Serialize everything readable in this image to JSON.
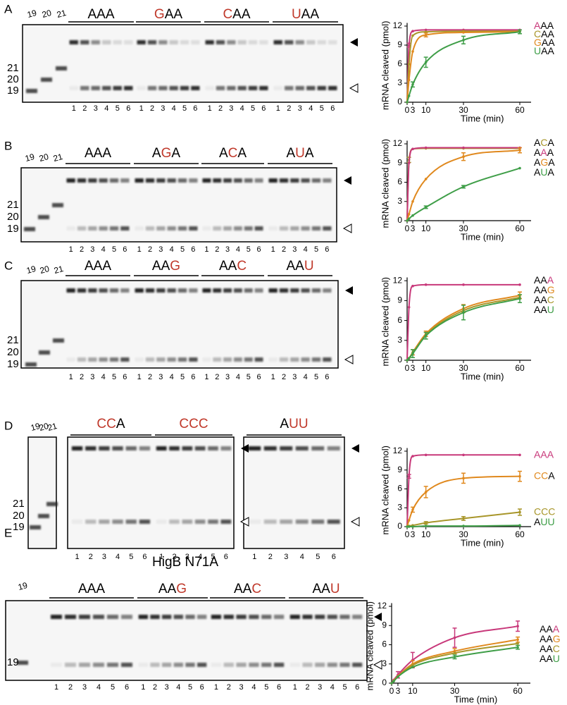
{
  "panel_labels": [
    "A",
    "B",
    "C",
    "D",
    "E"
  ],
  "gels": [
    {
      "ladder_top": [
        19,
        20,
        21
      ],
      "ladder_side": [
        21,
        20,
        19
      ],
      "lanes": [
        1,
        2,
        3,
        4,
        5,
        6
      ],
      "groups": [
        {
          "text": "AAA",
          "letter_colors": [
            "#000000",
            "#000000",
            "#000000"
          ]
        },
        {
          "text": "GAA",
          "letter_colors": [
            "#c0392b",
            "#000000",
            "#000000"
          ]
        },
        {
          "text": "CAA",
          "letter_colors": [
            "#c0392b",
            "#000000",
            "#000000"
          ]
        },
        {
          "text": "UAA",
          "letter_colors": [
            "#c0392b",
            "#000000",
            "#000000"
          ]
        }
      ]
    },
    {
      "ladder_top": [
        19,
        20,
        21
      ],
      "ladder_side": [
        21,
        20,
        19
      ],
      "lanes": [
        1,
        2,
        3,
        4,
        5,
        6
      ],
      "groups": [
        {
          "text": "AAA",
          "letter_colors": [
            "#000000",
            "#000000",
            "#000000"
          ]
        },
        {
          "text": "AGA",
          "letter_colors": [
            "#000000",
            "#c0392b",
            "#000000"
          ]
        },
        {
          "text": "ACA",
          "letter_colors": [
            "#000000",
            "#c0392b",
            "#000000"
          ]
        },
        {
          "text": "AUA",
          "letter_colors": [
            "#000000",
            "#c0392b",
            "#000000"
          ]
        }
      ]
    },
    {
      "ladder_top": [
        19,
        20,
        21
      ],
      "ladder_side": [
        21,
        20,
        19
      ],
      "lanes": [
        1,
        2,
        3,
        4,
        5,
        6
      ],
      "groups": [
        {
          "text": "AAA",
          "letter_colors": [
            "#000000",
            "#000000",
            "#000000"
          ]
        },
        {
          "text": "AAG",
          "letter_colors": [
            "#000000",
            "#000000",
            "#c0392b"
          ]
        },
        {
          "text": "AAC",
          "letter_colors": [
            "#000000",
            "#000000",
            "#c0392b"
          ]
        },
        {
          "text": "AAU",
          "letter_colors": [
            "#000000",
            "#000000",
            "#c0392b"
          ]
        }
      ]
    },
    {
      "ladder_top": [
        19,
        20,
        21
      ],
      "ladder_side": [
        21,
        20,
        19
      ],
      "lanes": [
        1,
        2,
        3,
        4,
        5,
        6
      ],
      "groups": [
        {
          "text": "CCA",
          "letter_colors": [
            "#c0392b",
            "#c0392b",
            "#000000"
          ]
        },
        {
          "text": "CCC",
          "letter_colors": [
            "#c0392b",
            "#c0392b",
            "#c0392b"
          ]
        },
        {
          "text": "AUU",
          "letter_colors": [
            "#000000",
            "#c0392b",
            "#c0392b"
          ]
        }
      ]
    },
    {
      "title": "HigB N71A",
      "ladder_top": [
        19
      ],
      "ladder_side": [
        19
      ],
      "lanes": [
        1,
        2,
        3,
        4,
        5,
        6
      ],
      "groups": [
        {
          "text": "AAA",
          "letter_colors": [
            "#000000",
            "#000000",
            "#000000"
          ]
        },
        {
          "text": "AAG",
          "letter_colors": [
            "#000000",
            "#000000",
            "#c0392b"
          ]
        },
        {
          "text": "AAC",
          "letter_colors": [
            "#000000",
            "#000000",
            "#c0392b"
          ]
        },
        {
          "text": "AAU",
          "letter_colors": [
            "#000000",
            "#000000",
            "#c0392b"
          ]
        }
      ]
    }
  ],
  "chart_data": [
    {
      "type": "line",
      "xlabel": "Time (min)",
      "ylabel": "mRNA cleaved (pmol)",
      "x": [
        0,
        1,
        3,
        10,
        30,
        60
      ],
      "xlim": [
        0,
        66
      ],
      "xticks": [
        0,
        3,
        10,
        30,
        60
      ],
      "ylim": [
        0,
        12.5
      ],
      "yticks": [
        0,
        3,
        6,
        9,
        12
      ],
      "series": [
        {
          "name": "AAA",
          "name_colors": [
            "#c8387a",
            "#000000",
            "#000000"
          ],
          "color": "#c8387a",
          "values": [
            0,
            9,
            11.2,
            11.4,
            11.4,
            11.4
          ],
          "errors": [
            null,
            0.3,
            null,
            null,
            null,
            null
          ]
        },
        {
          "name": "CAA",
          "name_colors": [
            "#a8962a",
            "#000000",
            "#000000"
          ],
          "color": "#a8962a",
          "values": [
            0,
            6,
            10.5,
            11.1,
            11.2,
            11.2
          ],
          "errors": [
            null,
            null,
            null,
            null,
            null,
            null
          ]
        },
        {
          "name": "GAA",
          "name_colors": [
            "#e0891e",
            "#000000",
            "#000000"
          ],
          "color": "#e0891e",
          "values": [
            0,
            3.5,
            8,
            10.6,
            11,
            11.1
          ],
          "errors": [
            null,
            null,
            null,
            0.3,
            null,
            null
          ]
        },
        {
          "name": "UAA",
          "name_colors": [
            "#3f9e48",
            "#000000",
            "#000000"
          ],
          "color": "#3f9e48",
          "values": [
            0,
            1,
            2.8,
            6.3,
            9.8,
            11.1
          ],
          "errors": [
            null,
            null,
            0.4,
            0.8,
            0.6,
            0.3
          ]
        }
      ]
    },
    {
      "type": "line",
      "xlabel": "Time (min)",
      "ylabel": "mRNA cleaved (pmol)",
      "x": [
        0,
        1,
        3,
        10,
        30,
        60
      ],
      "xlim": [
        0,
        66
      ],
      "xticks": [
        0,
        3,
        10,
        30,
        60
      ],
      "ylim": [
        0,
        12.5
      ],
      "yticks": [
        0,
        3,
        6,
        9,
        12
      ],
      "series": [
        {
          "name": "ACA",
          "name_colors": [
            "#000000",
            "#a8962a",
            "#000000"
          ],
          "color": "#a8962a",
          "values": [
            0,
            9.5,
            11.2,
            11.3,
            11.3,
            11.3
          ],
          "errors": [
            null,
            0.4,
            null,
            null,
            null,
            null
          ]
        },
        {
          "name": "AAA",
          "name_colors": [
            "#000000",
            "#c8387a",
            "#000000"
          ],
          "color": "#c8387a",
          "values": [
            0,
            9,
            11.2,
            11.4,
            11.4,
            11.4
          ],
          "errors": [
            null,
            null,
            null,
            null,
            null,
            null
          ]
        },
        {
          "name": "AGA",
          "name_colors": [
            "#000000",
            "#e0891e",
            "#000000"
          ],
          "color": "#e0891e",
          "values": [
            0,
            1,
            3,
            6.5,
            10,
            11
          ],
          "errors": [
            null,
            null,
            null,
            null,
            0.6,
            0.4
          ]
        },
        {
          "name": "AUA",
          "name_colors": [
            "#000000",
            "#3f9e48",
            "#000000"
          ],
          "color": "#3f9e48",
          "values": [
            0,
            0.3,
            0.8,
            2.1,
            5.3,
            8.2
          ],
          "errors": [
            null,
            null,
            null,
            0.2,
            0.2,
            null
          ]
        }
      ]
    },
    {
      "type": "line",
      "xlabel": "Time (min)",
      "ylabel": "mRNA cleaved (pmol)",
      "x": [
        0,
        1,
        3,
        10,
        30,
        60
      ],
      "xlim": [
        0,
        66
      ],
      "xticks": [
        0,
        3,
        10,
        30,
        60
      ],
      "ylim": [
        0,
        12.5
      ],
      "yticks": [
        0,
        3,
        6,
        9,
        12
      ],
      "series": [
        {
          "name": "AAA",
          "name_colors": [
            "#000000",
            "#000000",
            "#c8387a"
          ],
          "color": "#c8387a",
          "values": [
            0,
            8,
            11.2,
            11.4,
            11.4,
            11.4
          ],
          "errors": [
            null,
            null,
            null,
            null,
            null,
            null
          ]
        },
        {
          "name": "AAG",
          "name_colors": [
            "#000000",
            "#000000",
            "#e0891e"
          ],
          "color": "#e0891e",
          "values": [
            0,
            0.3,
            1.2,
            4,
            7.8,
            9.8
          ],
          "errors": [
            null,
            null,
            0.4,
            0.4,
            0.6,
            0.5
          ]
        },
        {
          "name": "AAC",
          "name_colors": [
            "#000000",
            "#000000",
            "#a8962a"
          ],
          "color": "#a8962a",
          "values": [
            0,
            0.3,
            1.1,
            3.8,
            7.5,
            9.5
          ],
          "errors": [
            null,
            null,
            null,
            null,
            null,
            null
          ]
        },
        {
          "name": "AAU",
          "name_colors": [
            "#000000",
            "#000000",
            "#3f9e48"
          ],
          "color": "#3f9e48",
          "values": [
            0,
            0.3,
            1,
            3.7,
            7.2,
            9.3
          ],
          "errors": [
            null,
            null,
            0.6,
            0.5,
            1.1,
            0.6
          ]
        }
      ]
    },
    {
      "type": "line",
      "xlabel": "Time (min)",
      "ylabel": "mRNA cleaved (pmol)",
      "x": [
        0,
        1,
        3,
        10,
        30,
        60
      ],
      "xlim": [
        0,
        66
      ],
      "xticks": [
        0,
        3,
        10,
        30,
        60
      ],
      "ylim": [
        0,
        12.5
      ],
      "yticks": [
        0,
        3,
        6,
        9,
        12
      ],
      "series": [
        {
          "name": "AAA",
          "name_colors": [
            "#c8387a",
            "#c8387a",
            "#c8387a"
          ],
          "color": "#c8387a",
          "values": [
            0,
            8,
            11.2,
            11.4,
            11.4,
            11.4
          ],
          "errors": [
            null,
            0.3,
            null,
            null,
            null,
            null
          ]
        },
        {
          "name": "CCA",
          "name_colors": [
            "#e0891e",
            "#e0891e",
            "#000000"
          ],
          "color": "#e0891e",
          "values": [
            0,
            1,
            2.7,
            5.5,
            7.7,
            8
          ],
          "errors": [
            null,
            null,
            0.4,
            0.9,
            0.8,
            0.8
          ]
        },
        {
          "name": "CCC",
          "name_colors": [
            "#a8962a",
            "#a8962a",
            "#a8962a"
          ],
          "color": "#a8962a",
          "values": [
            0,
            0.1,
            0.2,
            0.6,
            1.3,
            2.3
          ],
          "errors": [
            null,
            null,
            null,
            0.2,
            0.3,
            0.5
          ]
        },
        {
          "name": "AUU",
          "name_colors": [
            "#000000",
            "#3f9e48",
            "#3f9e48"
          ],
          "color": "#3f9e48",
          "values": [
            0,
            0,
            0,
            0.1,
            0.1,
            0.2
          ],
          "errors": [
            null,
            null,
            null,
            null,
            null,
            null
          ]
        }
      ]
    },
    {
      "type": "line",
      "xlabel": "Time (min)",
      "ylabel": "mRNA cleaved (pmol)",
      "x": [
        0,
        1,
        3,
        10,
        30,
        60
      ],
      "xlim": [
        0,
        66
      ],
      "xticks": [
        0,
        3,
        10,
        30,
        60
      ],
      "ylim": [
        0,
        12.5
      ],
      "yticks": [
        0,
        3,
        6,
        9,
        12
      ],
      "series": [
        {
          "name": "AAA",
          "name_colors": [
            "#000000",
            "#000000",
            "#c8387a"
          ],
          "color": "#c8387a",
          "values": [
            0,
            0.5,
            1.3,
            3.6,
            7.1,
            8.9
          ],
          "errors": [
            null,
            null,
            0.5,
            1.2,
            1.5,
            0.8
          ]
        },
        {
          "name": "AAG",
          "name_colors": [
            "#000000",
            "#000000",
            "#e0891e"
          ],
          "color": "#e0891e",
          "values": [
            0,
            0.4,
            1.1,
            3,
            5,
            6.8
          ],
          "errors": [
            null,
            null,
            null,
            0.5,
            0.4,
            0.4
          ]
        },
        {
          "name": "AAC",
          "name_colors": [
            "#000000",
            "#000000",
            "#a8962a"
          ],
          "color": "#a8962a",
          "values": [
            0,
            0.3,
            1,
            2.8,
            4.7,
            6.2
          ],
          "errors": [
            null,
            null,
            null,
            null,
            null,
            null
          ]
        },
        {
          "name": "AAU",
          "name_colors": [
            "#000000",
            "#000000",
            "#3f9e48"
          ],
          "color": "#3f9e48",
          "values": [
            0,
            0.3,
            1,
            2.5,
            4.1,
            5.6
          ],
          "errors": [
            null,
            null,
            null,
            null,
            0.3,
            0.3
          ]
        }
      ]
    }
  ]
}
